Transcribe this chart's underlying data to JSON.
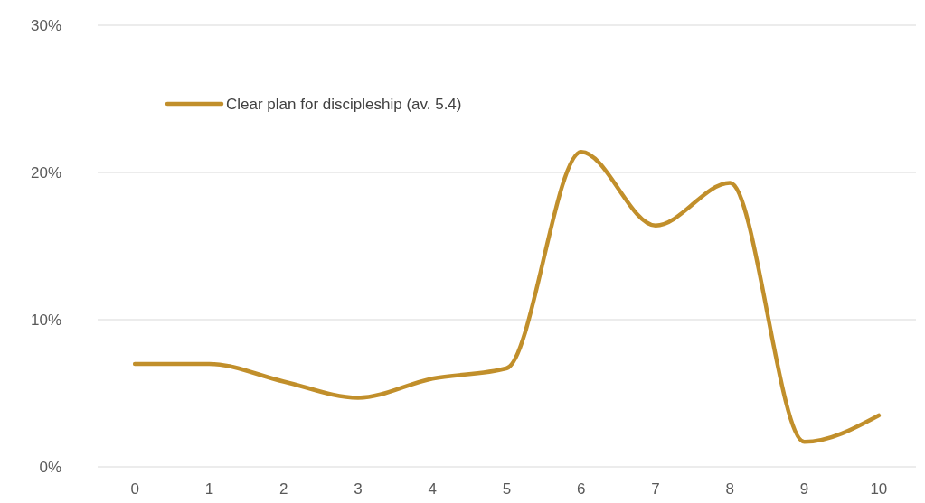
{
  "chart_data": {
    "type": "line",
    "categories": [
      "0",
      "1",
      "2",
      "3",
      "4",
      "5",
      "6",
      "7",
      "8",
      "9",
      "10"
    ],
    "series": [
      {
        "name": "Clear plan for discipleship (av. 5.4)",
        "color": "#c18f2b",
        "values": [
          7.0,
          7.0,
          5.8,
          4.7,
          6.0,
          6.7,
          21.4,
          16.4,
          19.3,
          1.7,
          3.5
        ]
      }
    ],
    "ylim": [
      0,
      30
    ],
    "yticks": [
      {
        "value": 0,
        "label": "0%"
      },
      {
        "value": 10,
        "label": "10%"
      },
      {
        "value": 20,
        "label": "20%"
      },
      {
        "value": 30,
        "label": "30%"
      }
    ],
    "grid": "y",
    "legend": "top left",
    "marker": "none",
    "line_style": "solid"
  }
}
